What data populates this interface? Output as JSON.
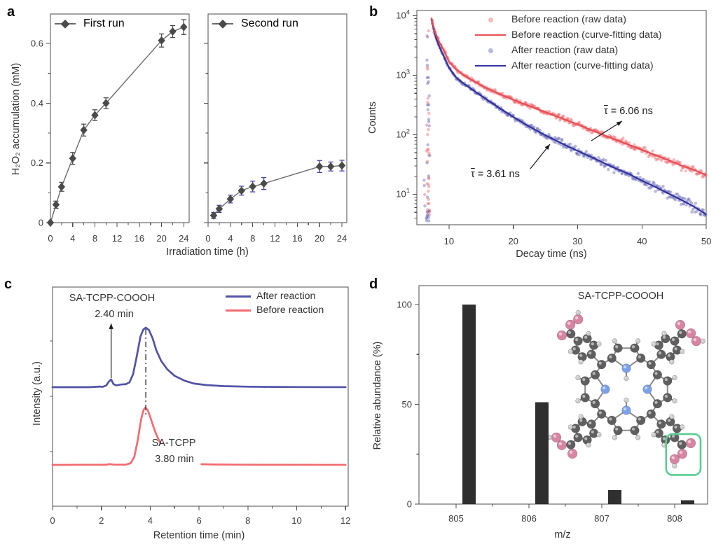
{
  "figure": {
    "panel_labels": {
      "a": "a",
      "b": "b",
      "c": "c",
      "d": "d"
    }
  },
  "colors": {
    "axis": "#4d4d4d",
    "text": "#333333",
    "tick_text": "#3a3a3a",
    "marker_gray": "#4a4a4a",
    "line_gray": "#6a6a6a",
    "errbar_blue": "#4545b0",
    "red_fit": "#ea4d55",
    "red_raw": "rgba(235,85,92,0.40)",
    "blue_fit": "#32329f",
    "blue_raw": "rgba(86,88,172,0.42)",
    "c_blue": "#5353a8",
    "c_red": "#f26b70",
    "bar": "#2f2f2f",
    "green_box": "#5acd92",
    "atom_C": "#5f5f5f",
    "atom_N": "#7ba1e8",
    "atom_O": "#d884a3",
    "atom_H": "#cdcdcd",
    "bond": "#8a8a8a"
  },
  "chart_data": [
    {
      "id": "a",
      "type": "line",
      "xlabel": "Irradiation time (h)",
      "ylabel": "H₂O₂ accumulation (mM)",
      "xticks": [
        0,
        4,
        8,
        12,
        16,
        20,
        24
      ],
      "xminor": [
        2,
        6,
        10,
        14,
        18,
        22
      ],
      "ytick_labels": [
        "0",
        "0.2",
        "0.4",
        "0.6"
      ],
      "ytick_values": [
        0,
        0.2,
        0.4,
        0.6
      ],
      "yminor": [
        0.1,
        0.3,
        0.5
      ],
      "xlim": [
        0,
        25
      ],
      "ylim": [
        0,
        0.7
      ],
      "marker": "diamond",
      "subplots": [
        {
          "legend": "First run",
          "x": [
            0,
            1,
            2,
            4,
            6,
            8,
            10,
            20,
            22,
            24
          ],
          "y": [
            0,
            0.06,
            0.12,
            0.215,
            0.31,
            0.36,
            0.4,
            0.61,
            0.64,
            0.655
          ],
          "yerr": [
            0,
            0.012,
            0.015,
            0.02,
            0.02,
            0.018,
            0.018,
            0.022,
            0.02,
            0.025
          ],
          "errbar_color_key": "marker_gray"
        },
        {
          "legend": "Second run",
          "x": [
            1,
            2,
            4,
            6,
            8,
            10,
            20,
            22,
            24
          ],
          "y": [
            0.024,
            0.046,
            0.079,
            0.107,
            0.121,
            0.131,
            0.188,
            0.188,
            0.191
          ],
          "yerr": [
            0.01,
            0.012,
            0.013,
            0.015,
            0.018,
            0.02,
            0.02,
            0.015,
            0.018
          ],
          "errbar_color_key": "errbar_blue"
        }
      ]
    },
    {
      "id": "b",
      "type": "scatter+line",
      "xlabel": "Decay time (ns)",
      "ylabel": "Counts",
      "xlim": [
        5,
        50
      ],
      "ylim": [
        3,
        10000
      ],
      "yscale": "log",
      "xticks": [
        10,
        20,
        30,
        40,
        50
      ],
      "ytick_exponents": [
        1,
        2,
        3,
        4
      ],
      "legend": [
        {
          "label": "Before reaction (raw data)",
          "swatch": "dot",
          "color_key": "red_raw"
        },
        {
          "label": "Before reaction (curve-fitting data)",
          "swatch": "line",
          "color_key": "red_fit"
        },
        {
          "label": "After reaction (raw data)",
          "swatch": "dot",
          "color_key": "blue_raw"
        },
        {
          "label": "After reaction (curve-fitting data)",
          "swatch": "line",
          "color_key": "blue_fit"
        }
      ],
      "fits": {
        "before": [
          [
            7.3,
            9300
          ],
          [
            7.6,
            6500
          ],
          [
            8,
            4800
          ],
          [
            8.5,
            3600
          ],
          [
            9,
            2900
          ],
          [
            10,
            1700
          ],
          [
            11,
            1300
          ],
          [
            12,
            1060
          ],
          [
            13,
            900
          ],
          [
            14,
            780
          ],
          [
            15,
            680
          ],
          [
            16,
            600
          ],
          [
            18,
            480
          ],
          [
            20,
            390
          ],
          [
            22,
            320
          ],
          [
            24,
            265
          ],
          [
            26,
            220
          ],
          [
            28,
            182
          ],
          [
            30,
            150
          ],
          [
            32,
            122
          ],
          [
            34,
            100
          ],
          [
            36,
            82
          ],
          [
            38,
            68
          ],
          [
            40,
            56
          ],
          [
            42,
            46
          ],
          [
            44,
            38
          ],
          [
            46,
            31
          ],
          [
            48,
            26
          ],
          [
            50,
            21
          ]
        ],
        "after": [
          [
            7.3,
            9000
          ],
          [
            7.6,
            6000
          ],
          [
            8,
            4200
          ],
          [
            8.5,
            3000
          ],
          [
            9,
            2300
          ],
          [
            10,
            1350
          ],
          [
            11,
            950
          ],
          [
            12,
            770
          ],
          [
            13,
            640
          ],
          [
            14,
            540
          ],
          [
            15,
            455
          ],
          [
            16,
            385
          ],
          [
            17,
            325
          ],
          [
            18,
            275
          ],
          [
            19,
            235
          ],
          [
            20,
            200
          ],
          [
            22,
            148
          ],
          [
            24,
            112
          ],
          [
            26,
            87
          ],
          [
            28,
            68
          ],
          [
            30,
            54
          ],
          [
            32,
            43
          ],
          [
            34,
            34
          ],
          [
            36,
            27
          ],
          [
            38,
            22
          ],
          [
            40,
            17
          ],
          [
            42,
            13.5
          ],
          [
            44,
            10.5
          ],
          [
            46,
            8.2
          ],
          [
            48,
            6.3
          ],
          [
            50,
            4.6
          ]
        ]
      },
      "annotations": [
        {
          "tau": "τ",
          "text": " = 6.06 ns"
        },
        {
          "tau": "τ",
          "text": " = 3.61 ns"
        }
      ]
    },
    {
      "id": "c",
      "type": "line",
      "xlabel": "Retention time (min)",
      "ylabel": "Intensity (a.u.)",
      "xlim": [
        0,
        12
      ],
      "xticks": [
        0,
        2,
        4,
        6,
        8,
        10,
        12
      ],
      "xminor": [
        1,
        3,
        5,
        7,
        9,
        11
      ],
      "legend": [
        {
          "label": "After reaction",
          "color_key": "c_blue"
        },
        {
          "label": "Before reaction",
          "color_key": "c_red"
        }
      ],
      "annotations": {
        "top_name": "SA-TCPP-COOOH",
        "top_time": "2.40 min",
        "bottom_name": "SA-TCPP",
        "bottom_time": "3.80 min"
      },
      "peak_times_min": {
        "after_small": 2.4,
        "main": 3.8
      },
      "traces": [
        {
          "name": "After reaction",
          "color_key": "c_blue",
          "points": [
            [
              0,
              0
            ],
            [
              1.5,
              0
            ],
            [
              1.95,
              0.01
            ],
            [
              2.05,
              0.005
            ],
            [
              2.2,
              0.03
            ],
            [
              2.3,
              0.09
            ],
            [
              2.4,
              0.13
            ],
            [
              2.5,
              0.05
            ],
            [
              2.62,
              0.03
            ],
            [
              2.8,
              0.045
            ],
            [
              3,
              0.05
            ],
            [
              3.15,
              0.08
            ],
            [
              3.3,
              0.22
            ],
            [
              3.45,
              0.52
            ],
            [
              3.6,
              0.85
            ],
            [
              3.72,
              0.97
            ],
            [
              3.82,
              1
            ],
            [
              3.95,
              0.96
            ],
            [
              4.1,
              0.82
            ],
            [
              4.25,
              0.62
            ],
            [
              4.45,
              0.44
            ],
            [
              4.7,
              0.3
            ],
            [
              5,
              0.19
            ],
            [
              5.4,
              0.11
            ],
            [
              5.8,
              0.06
            ],
            [
              6.3,
              0.035
            ],
            [
              7,
              0.018
            ],
            [
              8,
              0.008
            ],
            [
              9,
              0.004
            ],
            [
              10,
              0.002
            ],
            [
              11,
              0.001
            ],
            [
              12,
              0.001
            ]
          ]
        },
        {
          "name": "Before reaction",
          "color_key": "c_red",
          "points": [
            [
              0,
              0
            ],
            [
              2.2,
              0.003
            ],
            [
              2.35,
              0.015
            ],
            [
              2.5,
              0.004
            ],
            [
              3,
              0.004
            ],
            [
              3.2,
              0.03
            ],
            [
              3.35,
              0.14
            ],
            [
              3.5,
              0.45
            ],
            [
              3.62,
              0.78
            ],
            [
              3.72,
              0.95
            ],
            [
              3.8,
              1
            ],
            [
              3.9,
              0.95
            ],
            [
              4,
              0.84
            ],
            [
              4.12,
              0.68
            ],
            [
              4.25,
              0.53
            ],
            [
              4.38,
              0.41
            ],
            [
              4.42,
              0.37
            ]
          ],
          "tail": [
            [
              6.1,
              0.012
            ],
            [
              6.5,
              0.008
            ],
            [
              7.5,
              0.004
            ],
            [
              9,
              0.002
            ],
            [
              12,
              0.001
            ]
          ]
        }
      ]
    },
    {
      "id": "d",
      "type": "bar",
      "title": "SA-TCPP-COOOH",
      "xlabel": "m/z",
      "ylabel": "Relative abundance (%)",
      "xticks": [
        805,
        806,
        807,
        808
      ],
      "xminor": [
        805.5,
        806.5,
        807.5
      ],
      "yticks": [
        0,
        50,
        100
      ],
      "yminor": [
        25,
        75
      ],
      "xlim": [
        804.49,
        808.49
      ],
      "ylim": [
        0,
        109
      ],
      "bars": {
        "mz": [
          805.18,
          806.18,
          807.18,
          808.18
        ],
        "values": [
          100,
          51,
          7,
          2
        ]
      }
    }
  ]
}
